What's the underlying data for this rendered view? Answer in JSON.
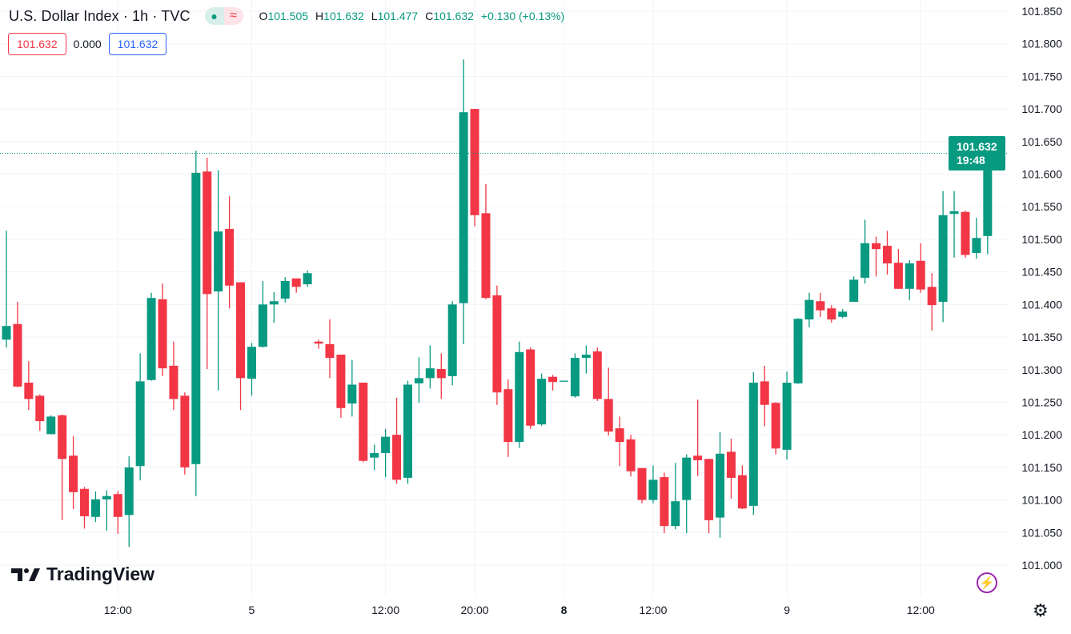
{
  "header": {
    "title": "U.S. Dollar Index · 1h · TVC",
    "status_dot": "●",
    "status_wave": "≈",
    "ohlc": {
      "o_label": "O",
      "o_value": "101.505",
      "h_label": "H",
      "h_value": "101.632",
      "l_label": "L",
      "l_value": "101.477",
      "c_label": "C",
      "c_value": "101.632",
      "change": "+0.130 (+0.13%)"
    },
    "sell_price": "101.632",
    "spread": "0.000",
    "buy_price": "101.632"
  },
  "price_tag": {
    "price": "101.632",
    "countdown": "19:48"
  },
  "logo_text": "TradingView",
  "icons": {
    "bolt": "⚡",
    "gear": "⚙"
  },
  "colors": {
    "up": "#089981",
    "down": "#F23645",
    "grid": "#f0f3fa",
    "text": "#131722"
  },
  "chart_data": {
    "type": "candlestick",
    "title": "U.S. Dollar Index · 1h · TVC",
    "ylim": [
      101.0,
      101.85
    ],
    "y_ticks": [
      "101.850",
      "101.800",
      "101.750",
      "101.700",
      "101.650",
      "101.600",
      "101.550",
      "101.500",
      "101.450",
      "101.400",
      "101.350",
      "101.300",
      "101.250",
      "101.200",
      "101.150",
      "101.100",
      "101.050",
      "101.000"
    ],
    "x_ticks": [
      {
        "index": 10,
        "label": "12:00",
        "bold": false
      },
      {
        "index": 22,
        "label": "5",
        "bold": false
      },
      {
        "index": 34,
        "label": "12:00",
        "bold": false
      },
      {
        "index": 42,
        "label": "20:00",
        "bold": false
      },
      {
        "index": 50,
        "label": "8",
        "bold": true
      },
      {
        "index": 58,
        "label": "12:00",
        "bold": false
      },
      {
        "index": 70,
        "label": "9",
        "bold": false
      },
      {
        "index": 82,
        "label": "12:00",
        "bold": false
      }
    ],
    "last_price": 101.632,
    "candles_ohlc": [
      [
        101.346,
        101.513,
        101.334,
        101.367
      ],
      [
        101.37,
        101.404,
        101.273,
        101.274
      ],
      [
        101.28,
        101.313,
        101.238,
        101.255
      ],
      [
        101.26,
        101.262,
        101.206,
        101.221
      ],
      [
        101.201,
        101.23,
        101.201,
        101.228
      ],
      [
        101.23,
        101.231,
        101.069,
        101.163
      ],
      [
        101.168,
        101.198,
        101.086,
        101.112
      ],
      [
        101.117,
        101.12,
        101.056,
        101.075
      ],
      [
        101.074,
        101.113,
        101.066,
        101.101
      ],
      [
        101.101,
        101.115,
        101.053,
        101.106
      ],
      [
        101.109,
        101.114,
        101.048,
        101.074
      ],
      [
        101.077,
        101.167,
        101.028,
        101.15
      ],
      [
        101.152,
        101.325,
        101.13,
        101.282
      ],
      [
        101.284,
        101.418,
        101.283,
        101.41
      ],
      [
        101.408,
        101.432,
        101.29,
        101.302
      ],
      [
        101.306,
        101.343,
        101.238,
        101.255
      ],
      [
        101.26,
        101.265,
        101.139,
        101.15
      ],
      [
        101.155,
        101.636,
        101.106,
        101.602
      ],
      [
        101.604,
        101.625,
        101.301,
        101.416
      ],
      [
        101.42,
        101.606,
        101.268,
        101.512
      ],
      [
        101.516,
        101.566,
        101.394,
        101.429
      ],
      [
        101.434,
        101.434,
        101.238,
        101.287
      ],
      [
        101.286,
        101.341,
        101.26,
        101.335
      ],
      [
        101.335,
        101.436,
        101.334,
        101.4
      ],
      [
        101.4,
        101.419,
        101.372,
        101.405
      ],
      [
        101.409,
        101.442,
        101.403,
        101.436
      ],
      [
        101.44,
        101.44,
        101.418,
        101.427
      ],
      [
        101.431,
        101.452,
        101.427,
        101.448
      ],
      [
        101.343,
        101.346,
        101.332,
        101.34
      ],
      [
        101.339,
        101.377,
        101.287,
        101.318
      ],
      [
        101.323,
        101.323,
        101.226,
        101.241
      ],
      [
        101.248,
        101.315,
        101.228,
        101.277
      ],
      [
        101.28,
        101.28,
        101.158,
        101.16
      ],
      [
        101.165,
        101.185,
        101.146,
        101.172
      ],
      [
        101.172,
        101.209,
        101.135,
        101.197
      ],
      [
        101.2,
        101.257,
        101.125,
        101.131
      ],
      [
        101.134,
        101.283,
        101.125,
        101.277
      ],
      [
        101.279,
        101.319,
        101.249,
        101.287
      ],
      [
        101.287,
        101.337,
        101.271,
        101.302
      ],
      [
        101.301,
        101.325,
        101.255,
        101.287
      ],
      [
        101.29,
        101.405,
        101.276,
        101.4
      ],
      [
        101.402,
        101.776,
        101.339,
        101.695
      ],
      [
        101.7,
        101.7,
        101.52,
        101.537
      ],
      [
        101.54,
        101.585,
        101.408,
        101.41
      ],
      [
        101.414,
        101.429,
        101.246,
        101.265
      ],
      [
        101.27,
        101.285,
        101.166,
        101.189
      ],
      [
        101.189,
        101.343,
        101.18,
        101.327
      ],
      [
        101.331,
        101.334,
        101.209,
        101.214
      ],
      [
        101.216,
        101.294,
        101.214,
        101.286
      ],
      [
        101.289,
        101.292,
        101.268,
        101.281
      ],
      [
        101.282,
        101.283,
        101.282,
        101.283
      ],
      [
        101.259,
        101.325,
        101.257,
        101.318
      ],
      [
        101.318,
        101.337,
        101.294,
        101.323
      ],
      [
        101.328,
        101.334,
        101.252,
        101.255
      ],
      [
        101.255,
        101.303,
        101.199,
        101.205
      ],
      [
        101.21,
        101.228,
        101.152,
        101.189
      ],
      [
        101.193,
        101.2,
        101.136,
        101.144
      ],
      [
        101.149,
        101.149,
        101.095,
        101.1
      ],
      [
        101.1,
        101.153,
        101.095,
        101.131
      ],
      [
        101.135,
        101.142,
        101.049,
        101.06
      ],
      [
        101.06,
        101.157,
        101.055,
        101.098
      ],
      [
        101.1,
        101.17,
        101.049,
        101.165
      ],
      [
        101.168,
        101.254,
        101.137,
        101.161
      ],
      [
        101.163,
        101.163,
        101.049,
        101.069
      ],
      [
        101.073,
        101.204,
        101.042,
        101.171
      ],
      [
        101.174,
        101.194,
        101.102,
        101.134
      ],
      [
        101.138,
        101.153,
        101.086,
        101.087
      ],
      [
        101.091,
        101.296,
        101.077,
        101.28
      ],
      [
        101.282,
        101.306,
        101.213,
        101.246
      ],
      [
        101.249,
        101.25,
        101.17,
        101.179
      ],
      [
        101.177,
        101.297,
        101.162,
        101.28
      ],
      [
        101.279,
        101.379,
        101.278,
        101.378
      ],
      [
        101.377,
        101.418,
        101.365,
        101.407
      ],
      [
        101.405,
        101.418,
        101.381,
        101.391
      ],
      [
        101.394,
        101.399,
        101.372,
        101.377
      ],
      [
        101.381,
        101.393,
        101.379,
        101.389
      ],
      [
        101.404,
        101.443,
        101.404,
        101.438
      ],
      [
        101.441,
        101.53,
        101.432,
        101.494
      ],
      [
        101.494,
        101.504,
        101.443,
        101.485
      ],
      [
        101.49,
        101.513,
        101.446,
        101.463
      ],
      [
        101.464,
        101.485,
        101.424,
        101.424
      ],
      [
        101.424,
        101.468,
        101.407,
        101.463
      ],
      [
        101.467,
        101.494,
        101.418,
        101.423
      ],
      [
        101.427,
        101.448,
        101.36,
        101.399
      ],
      [
        101.404,
        101.574,
        101.373,
        101.537
      ],
      [
        101.539,
        101.574,
        101.472,
        101.543
      ],
      [
        101.542,
        101.544,
        101.472,
        101.476
      ],
      [
        101.479,
        101.533,
        101.47,
        101.502
      ],
      [
        101.505,
        101.632,
        101.477,
        101.632
      ]
    ]
  }
}
